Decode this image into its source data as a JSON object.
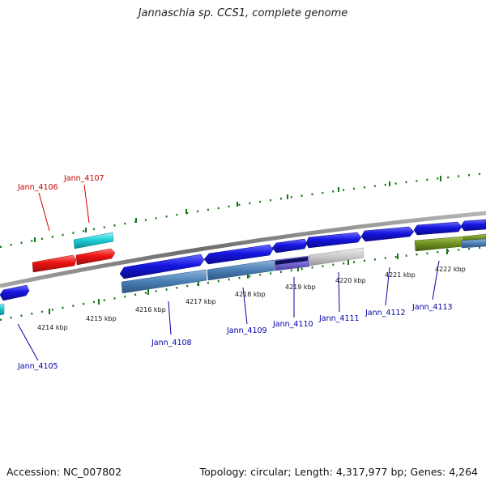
{
  "header": {
    "title": "Jannaschia sp. CCS1, complete genome"
  },
  "footer": {
    "accession": "Accession: NC_007802",
    "topology": "Topology: circular; Length: 4,317,977 bp; Genes: 4,264"
  },
  "colors": {
    "backbone": "#8a8a8a",
    "gene_forward": "#1515e0",
    "gene_steelblue": "#4a7fb5",
    "gene_red": "#ee1111",
    "gene_cyan": "#1fd0d8",
    "gene_olive": "#6e8f1e",
    "gene_gray": "#c8c8c8",
    "gene_purple": "#7a6ad6",
    "tick_green": "#117711",
    "label_red": "#cc0000",
    "label_blue": "#0000aa"
  },
  "scale_ticks": [
    "4214 kbp",
    "4215 kbp",
    "4216 kbp",
    "4217 kbp",
    "4218 kbp",
    "4219 kbp",
    "4220 kbp",
    "4221 kbp",
    "4222 kbp"
  ],
  "gene_labels": [
    {
      "id": "Jann_4105",
      "color": "blue"
    },
    {
      "id": "Jann_4106",
      "color": "red"
    },
    {
      "id": "Jann_4107",
      "color": "red"
    },
    {
      "id": "Jann_4108",
      "color": "blue"
    },
    {
      "id": "Jann_4109",
      "color": "blue"
    },
    {
      "id": "Jann_4110",
      "color": "blue"
    },
    {
      "id": "Jann_4111",
      "color": "blue"
    },
    {
      "id": "Jann_4112",
      "color": "blue"
    },
    {
      "id": "Jann_4113",
      "color": "blue"
    }
  ]
}
